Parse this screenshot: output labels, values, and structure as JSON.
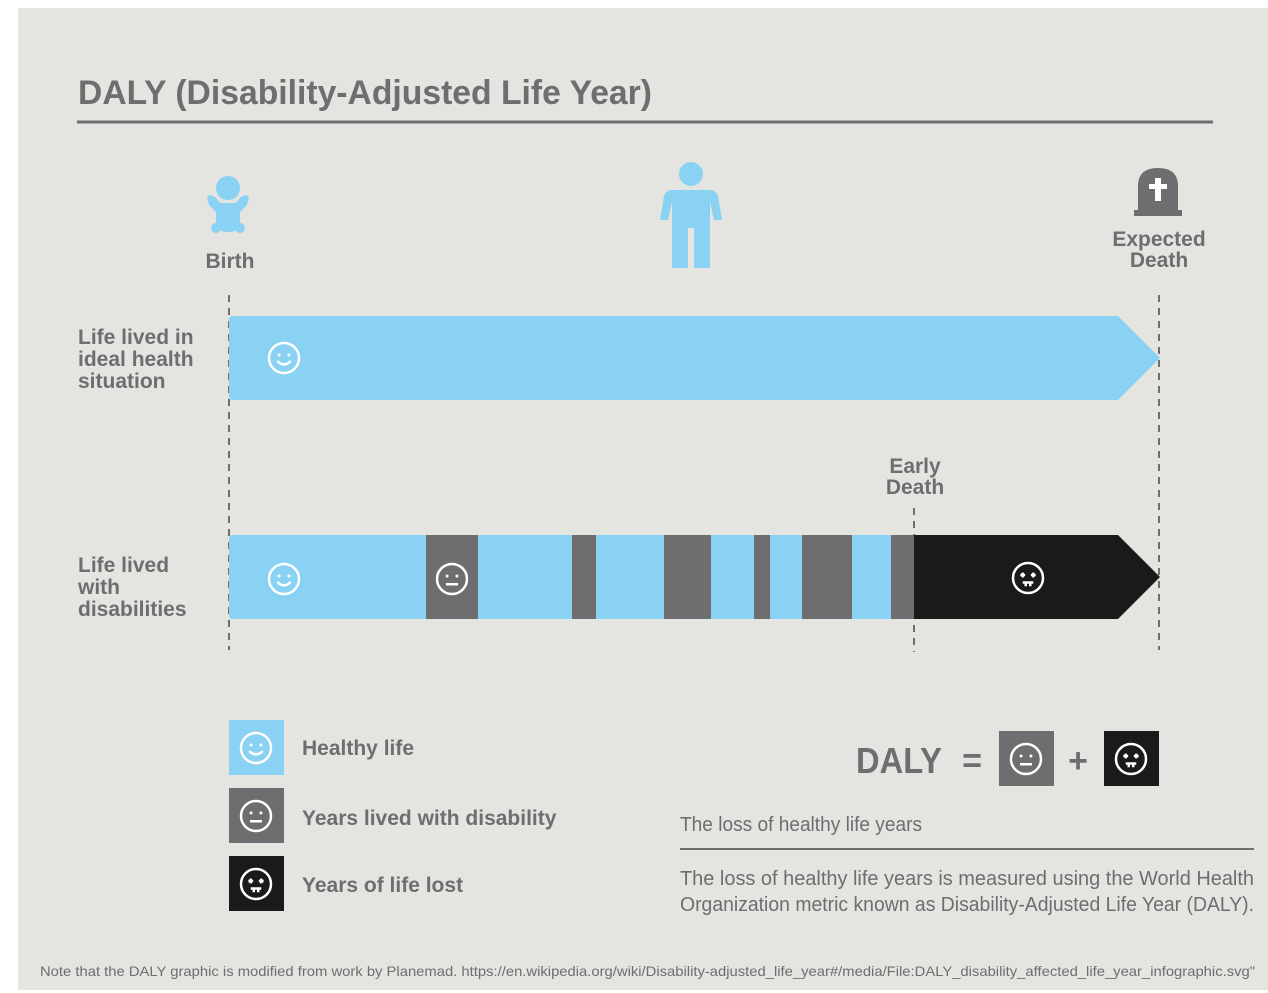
{
  "title": "DALY (Disability-Adjusted Life Year)",
  "timeline": {
    "birth": "Birth",
    "expected_death": [
      "Expected",
      "Death"
    ],
    "early_death": [
      "Early",
      "Death"
    ]
  },
  "rows": [
    {
      "label": [
        "Life lived in",
        "ideal health",
        "situation"
      ]
    },
    {
      "label": [
        "Life lived",
        "with",
        "disabilities"
      ]
    }
  ],
  "legend": [
    "Healthy life",
    "Years lived with disability",
    "Years of life lost"
  ],
  "formula": {
    "lhs": "DALY",
    "equals": "=",
    "plus": "+"
  },
  "definition": {
    "heading": "The loss of healthy life years",
    "text": [
      "The loss of healthy life years is measured using the World Health",
      "Organization metric known as Disability-Adjusted Life Year (DALY)."
    ]
  },
  "footnote": "Note that the DALY graphic is modified from work by Planemad. https://en.wikipedia.org/wiki/Disability-adjusted_life_year#/media/File:DALY_disability_affected_life_year_infographic.svg\""
}
